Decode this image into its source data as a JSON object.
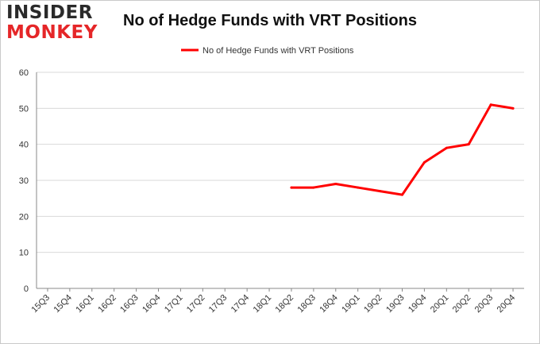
{
  "logo": {
    "line1": "INSIDER",
    "line2": "MONKEY"
  },
  "colors": {
    "series": "#ff0000",
    "grid": "#d9d9d9",
    "axis": "#888888",
    "logo_dark": "#2a2a2a",
    "logo_red": "#e52628"
  },
  "chart_data": {
    "type": "line",
    "title": "No of Hedge Funds with VRT Positions",
    "xlabel": "",
    "ylabel": "",
    "ylim": [
      0,
      60
    ],
    "yticks": [
      0,
      10,
      20,
      30,
      40,
      50,
      60
    ],
    "grid": "horizontal",
    "legend_position": "top-center",
    "categories": [
      "15Q3",
      "15Q4",
      "16Q1",
      "16Q2",
      "16Q3",
      "16Q4",
      "17Q1",
      "17Q2",
      "17Q3",
      "17Q4",
      "18Q1",
      "18Q2",
      "18Q3",
      "18Q4",
      "19Q1",
      "19Q2",
      "19Q3",
      "19Q4",
      "20Q1",
      "20Q2",
      "20Q3",
      "20Q4"
    ],
    "series": [
      {
        "name": "No of Hedge Funds with VRT Positions",
        "color": "#ff0000",
        "values": [
          null,
          null,
          null,
          null,
          null,
          null,
          null,
          null,
          null,
          null,
          null,
          28,
          28,
          29,
          28,
          27,
          26,
          35,
          39,
          40,
          51,
          50
        ]
      }
    ]
  }
}
